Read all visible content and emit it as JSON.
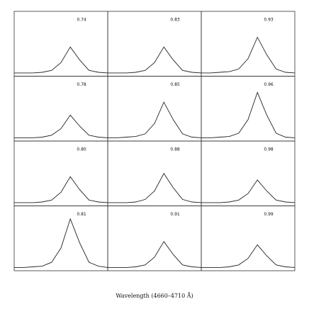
{
  "xlabel": "Wavelength (4660–4710 Å)",
  "chart_data": [
    {
      "type": "line",
      "title": "0.74",
      "color": "#222222",
      "xlim": [
        4660,
        4710
      ],
      "ylim": [
        0,
        1
      ],
      "x": [
        4660,
        4665,
        4670,
        4675,
        4680,
        4685,
        4690,
        4695,
        4700,
        4705,
        4710
      ],
      "values": [
        0.05,
        0.05,
        0.05,
        0.06,
        0.09,
        0.21,
        0.45,
        0.25,
        0.09,
        0.06,
        0.05
      ]
    },
    {
      "type": "line",
      "title": "0.83",
      "color": "#222222",
      "xlim": [
        4660,
        4710
      ],
      "ylim": [
        0,
        1
      ],
      "x": [
        4660,
        4665,
        4670,
        4675,
        4680,
        4685,
        4690,
        4695,
        4700,
        4705,
        4710
      ],
      "values": [
        0.05,
        0.05,
        0.05,
        0.06,
        0.09,
        0.21,
        0.45,
        0.25,
        0.09,
        0.06,
        0.05
      ]
    },
    {
      "type": "line",
      "title": "0.93",
      "color": "#222222",
      "xlim": [
        4660,
        4710
      ],
      "ylim": [
        0,
        1
      ],
      "x": [
        4660,
        4665,
        4670,
        4675,
        4680,
        4685,
        4690,
        4695,
        4700,
        4705,
        4710
      ],
      "values": [
        0.05,
        0.05,
        0.06,
        0.07,
        0.11,
        0.27,
        0.6,
        0.33,
        0.11,
        0.06,
        0.05
      ]
    },
    {
      "type": "line",
      "title": "0.78",
      "color": "#222222",
      "xlim": [
        4660,
        4710
      ],
      "ylim": [
        0,
        1
      ],
      "x": [
        4660,
        4665,
        4670,
        4675,
        4680,
        4685,
        4690,
        4695,
        4700,
        4705,
        4710
      ],
      "values": [
        0.05,
        0.05,
        0.05,
        0.06,
        0.09,
        0.19,
        0.4,
        0.23,
        0.09,
        0.06,
        0.05
      ]
    },
    {
      "type": "line",
      "title": "0.85",
      "color": "#222222",
      "xlim": [
        4660,
        4710
      ],
      "ylim": [
        0,
        1
      ],
      "x": [
        4660,
        4665,
        4670,
        4675,
        4680,
        4685,
        4690,
        4695,
        4700,
        4705,
        4710
      ],
      "values": [
        0.05,
        0.05,
        0.06,
        0.07,
        0.11,
        0.27,
        0.6,
        0.33,
        0.11,
        0.06,
        0.05
      ]
    },
    {
      "type": "line",
      "title": "0.96",
      "color": "#222222",
      "xlim": [
        4660,
        4710
      ],
      "ylim": [
        0,
        1
      ],
      "x": [
        4660,
        4665,
        4670,
        4675,
        4680,
        4685,
        4690,
        4695,
        4700,
        4705,
        4710
      ],
      "values": [
        0.05,
        0.05,
        0.06,
        0.07,
        0.12,
        0.33,
        0.75,
        0.4,
        0.12,
        0.06,
        0.05
      ]
    },
    {
      "type": "line",
      "title": "0.80",
      "color": "#222222",
      "xlim": [
        4660,
        4710
      ],
      "ylim": [
        0,
        1
      ],
      "x": [
        4660,
        4665,
        4670,
        4675,
        4680,
        4685,
        4690,
        4695,
        4700,
        4705,
        4710
      ],
      "values": [
        0.05,
        0.05,
        0.05,
        0.06,
        0.09,
        0.21,
        0.45,
        0.25,
        0.09,
        0.06,
        0.05
      ]
    },
    {
      "type": "line",
      "title": "0.88",
      "color": "#222222",
      "xlim": [
        4660,
        4710
      ],
      "ylim": [
        0,
        1
      ],
      "x": [
        4660,
        4665,
        4670,
        4675,
        4680,
        4685,
        4690,
        4695,
        4700,
        4705,
        4710
      ],
      "values": [
        0.05,
        0.05,
        0.05,
        0.06,
        0.1,
        0.23,
        0.5,
        0.28,
        0.1,
        0.06,
        0.05
      ]
    },
    {
      "type": "line",
      "title": "0.98",
      "color": "#222222",
      "xlim": [
        4660,
        4710
      ],
      "ylim": [
        0,
        1
      ],
      "x": [
        4660,
        4665,
        4670,
        4675,
        4680,
        4685,
        4690,
        4695,
        4700,
        4705,
        4710
      ],
      "values": [
        0.05,
        0.05,
        0.05,
        0.06,
        0.09,
        0.19,
        0.4,
        0.23,
        0.09,
        0.06,
        0.05
      ]
    },
    {
      "type": "line",
      "title": "0.81",
      "color": "#222222",
      "xlim": [
        4660,
        4710
      ],
      "ylim": [
        0,
        1
      ],
      "x": [
        4660,
        4665,
        4670,
        4675,
        4680,
        4685,
        4690,
        4695,
        4700,
        4705,
        4710
      ],
      "values": [
        0.05,
        0.05,
        0.06,
        0.07,
        0.13,
        0.35,
        0.8,
        0.43,
        0.13,
        0.07,
        0.05
      ]
    },
    {
      "type": "line",
      "title": "0.91",
      "color": "#222222",
      "xlim": [
        4660,
        4710
      ],
      "ylim": [
        0,
        1
      ],
      "x": [
        4660,
        4665,
        4670,
        4675,
        4680,
        4685,
        4690,
        4695,
        4700,
        4705,
        4710
      ],
      "values": [
        0.05,
        0.05,
        0.05,
        0.06,
        0.09,
        0.21,
        0.45,
        0.25,
        0.09,
        0.06,
        0.05
      ]
    },
    {
      "type": "line",
      "title": "0.99",
      "color": "#222222",
      "xlim": [
        4660,
        4710
      ],
      "ylim": [
        0,
        1
      ],
      "x": [
        4660,
        4665,
        4670,
        4675,
        4680,
        4685,
        4690,
        4695,
        4700,
        4705,
        4710
      ],
      "values": [
        0.05,
        0.05,
        0.05,
        0.06,
        0.09,
        0.19,
        0.4,
        0.23,
        0.09,
        0.06,
        0.05
      ]
    }
  ]
}
